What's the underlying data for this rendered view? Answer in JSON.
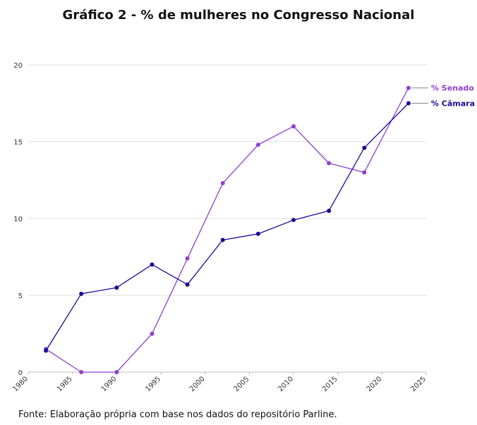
{
  "chart_data": {
    "type": "line",
    "title": "Gráfico 2 - % de mulheres no Congresso Nacional",
    "xlabel": "",
    "ylabel": "",
    "xlim": [
      1980,
      2025
    ],
    "ylim": [
      0,
      20
    ],
    "x_ticks": [
      "1980",
      "1985",
      "1990",
      "1995",
      "2000",
      "2005",
      "2010",
      "2015",
      "2020",
      "2025"
    ],
    "y_ticks": [
      "0",
      "5",
      "10",
      "15",
      "20"
    ],
    "grid": "horizontal",
    "legend": "line-end labels",
    "series": [
      {
        "name": "% Senado",
        "color": "#8f3fcf",
        "x": [
          1982,
          1986,
          1990,
          1994,
          1998,
          2002,
          2006,
          2010,
          2014,
          2018,
          2023
        ],
        "values": [
          1.5,
          0.0,
          0.0,
          2.5,
          7.4,
          12.3,
          14.8,
          16.0,
          13.6,
          13.0,
          18.5
        ]
      },
      {
        "name": "% Câmara",
        "color": "#1a0a96",
        "x": [
          1982,
          1986,
          1990,
          1994,
          1998,
          2002,
          2006,
          2010,
          2014,
          2018,
          2023
        ],
        "values": [
          1.4,
          5.1,
          5.5,
          7.0,
          5.7,
          8.6,
          9.0,
          9.9,
          10.5,
          14.6,
          17.5
        ]
      }
    ]
  },
  "source_note": "Fonte: Elaboração própria com base nos dados do repositório Parline."
}
